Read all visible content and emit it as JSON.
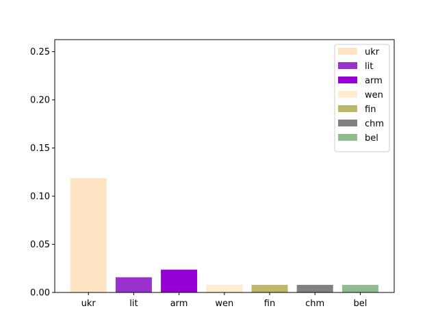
{
  "chart_data": {
    "type": "bar",
    "title": "",
    "xlabel": "",
    "ylabel": "",
    "categories": [
      "ukr",
      "lit",
      "arm",
      "wen",
      "fin",
      "chm",
      "bel"
    ],
    "values": [
      0.1186,
      0.0158,
      0.0237,
      0.0079,
      0.0079,
      0.0079,
      0.0079
    ],
    "colors": [
      "#ffe4c4",
      "#9932cc",
      "#9400d3",
      "#ffebcd",
      "#bdb76b",
      "#808080",
      "#8fbc8f"
    ],
    "ylim": [
      0,
      0.2625
    ],
    "yticks": [
      0.0,
      0.05,
      0.1,
      0.15,
      0.2,
      0.25
    ],
    "ytick_labels": [
      "0.00",
      "0.05",
      "0.10",
      "0.15",
      "0.20",
      "0.25"
    ],
    "legend": {
      "placement": "top-right",
      "entries": [
        "ukr",
        "lit",
        "arm",
        "wen",
        "fin",
        "chm",
        "bel"
      ]
    },
    "grid": false
  }
}
